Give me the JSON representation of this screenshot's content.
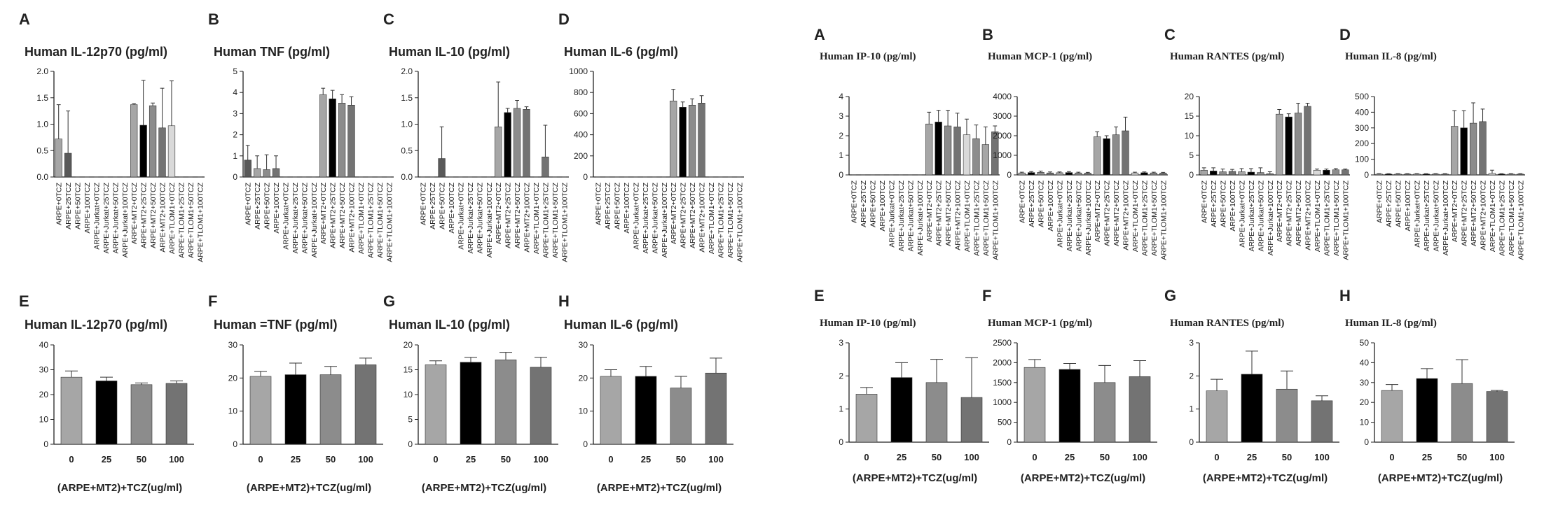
{
  "chart_data": [
    {
      "type": "bar",
      "label": "A",
      "title": "Human IL-12p70 (pg/ml)",
      "categories": [
        "ARPE+0TCZ",
        "ARPE+25TCZ",
        "ARPE+50TCZ",
        "ARPE+100TCZ",
        "ARPE+Jurkat+0TCZ",
        "ARPE+Jurkat+25TCZ",
        "ARPE+Jurkat+50TCZ",
        "ARPE+Jurkat+100TCZ",
        "ARPE+MT2+0TCZ",
        "ARPE+MT2+25TCZ",
        "ARPE+MT2+50TCZ",
        "ARPE+MT2+100TCZ",
        "ARPE+TLOM1+0TCZ",
        "ARPE+TLOM1+25TCZ",
        "ARPE+TLOM1+50TCZ",
        "ARPE+TLOM1+100TCZ"
      ],
      "values": [
        0.72,
        0.45,
        0,
        0,
        0,
        0,
        0,
        0,
        1.37,
        0.98,
        1.35,
        0.93,
        0.97,
        0,
        0,
        0
      ],
      "errors": [
        0.65,
        0.8,
        0,
        0,
        0,
        0,
        0,
        0,
        0.02,
        0.85,
        0.05,
        0.75,
        0.85,
        0,
        0,
        0
      ],
      "colors": [
        "#a6a6a6",
        "#595959",
        "#8c8c8c",
        "#737373",
        "#a6a6a6",
        "#000000",
        "#8c8c8c",
        "#737373",
        "#a6a6a6",
        "#000000",
        "#8c8c8c",
        "#737373",
        "#d9d9d9",
        "#000000",
        "#8c8c8c",
        "#737373"
      ],
      "ylim": [
        0,
        2
      ],
      "yticks": [
        {
          "value": 0,
          "label": "0.0"
        },
        0.5,
        {
          "value": 1,
          "label": "1.0"
        },
        1.5,
        {
          "value": 2,
          "label": "2.0"
        }
      ]
    },
    {
      "type": "bar",
      "label": "B",
      "title": "Human TNF (pg/ml)",
      "categories": [
        "ARPE+0TCZ",
        "ARPE+25TCZ",
        "ARPE+50TCZ",
        "ARPE+100TCZ",
        "ARPE+Jurkat+0TCZ",
        "ARPE+Jurkat+25TCZ",
        "ARPE+Jurkat+50TCZ",
        "ARPE+Jurkat+100TCZ",
        "ARPE+MT2+0TCZ",
        "ARPE+MT2+25TCZ",
        "ARPE+MT2+50TCZ",
        "ARPE+MT2+100TCZ",
        "ARPE+TLOM1+0TCZ",
        "ARPE+TLOM1+25TCZ",
        "ARPE+TLOM1+50TCZ",
        "ARPE+TLOM1+100TCZ"
      ],
      "values": [
        0.8,
        0.4,
        0.35,
        0.4,
        0,
        0,
        0,
        0,
        3.9,
        3.7,
        3.5,
        3.4,
        0,
        0,
        0,
        0
      ],
      "errors": [
        0.7,
        0.6,
        0.7,
        0.6,
        0,
        0,
        0,
        0,
        0.3,
        0.4,
        0.4,
        0.4,
        0,
        0,
        0,
        0
      ],
      "colors": [
        "#595959",
        "#a6a6a6",
        "#8c8c8c",
        "#737373",
        "#a6a6a6",
        "#000000",
        "#8c8c8c",
        "#737373",
        "#a6a6a6",
        "#000000",
        "#8c8c8c",
        "#737373",
        "#d9d9d9",
        "#000000",
        "#8c8c8c",
        "#737373"
      ],
      "ylim": [
        0,
        5
      ],
      "yticks": [
        0,
        1,
        2,
        3,
        4,
        5
      ]
    },
    {
      "type": "bar",
      "label": "C",
      "title": "Human IL-10 (pg/ml)",
      "categories": [
        "ARPE+0TCZ",
        "ARPE+25TCZ",
        "ARPE+50TCZ",
        "ARPE+100TCZ",
        "ARPE+Jurkat+0TCZ",
        "ARPE+Jurkat+25TCZ",
        "ARPE+Jurkat+50TCZ",
        "ARPE+Jurkat+100TCZ",
        "ARPE+MT2+0TCZ",
        "ARPE+MT2+25TCZ",
        "ARPE+MT2+50TCZ",
        "ARPE+MT2+100TCZ",
        "ARPE+TLOM1+0TCZ",
        "ARPE+TLOM1+25TCZ",
        "ARPE+TLOM1+50TCZ",
        "ARPE+TLOM1+100TCZ"
      ],
      "values": [
        0,
        0,
        0.35,
        0,
        0,
        0,
        0,
        0,
        0.95,
        1.22,
        1.3,
        1.28,
        0,
        0.38,
        0,
        0
      ],
      "errors": [
        0,
        0,
        0.6,
        0,
        0,
        0,
        0,
        0,
        0.85,
        0.08,
        0.15,
        0.05,
        0,
        0.6,
        0,
        0
      ],
      "colors": [
        "#a6a6a6",
        "#000000",
        "#595959",
        "#737373",
        "#a6a6a6",
        "#000000",
        "#8c8c8c",
        "#737373",
        "#a6a6a6",
        "#000000",
        "#8c8c8c",
        "#737373",
        "#d9d9d9",
        "#737373",
        "#8c8c8c",
        "#737373"
      ],
      "ylim": [
        0,
        2
      ],
      "yticks": [
        {
          "value": 0,
          "label": "0.0"
        },
        0.5,
        {
          "value": 1,
          "label": "1.0"
        },
        1.5,
        {
          "value": 2,
          "label": "2.0"
        }
      ]
    },
    {
      "type": "bar",
      "label": "D",
      "title": "Human IL-6 (pg/ml)",
      "categories": [
        "ARPE+0TCZ",
        "ARPE+25TCZ",
        "ARPE+50TCZ",
        "ARPE+100TCZ",
        "ARPE+Jurkat+0TCZ",
        "ARPE+Jurkat+25TCZ",
        "ARPE+Jurkat+50TCZ",
        "ARPE+Jurkat+100TCZ",
        "ARPE+MT2+0TCZ",
        "ARPE+MT2+25TCZ",
        "ARPE+MT2+50TCZ",
        "ARPE+MT2+100TCZ",
        "ARPE+TLOM1+0TCZ",
        "ARPE+TLOM1+25TCZ",
        "ARPE+TLOM1+50TCZ",
        "ARPE+TLOM1+100TCZ"
      ],
      "values": [
        0,
        0,
        0,
        0,
        0,
        0,
        0,
        0,
        720,
        660,
        680,
        700,
        0,
        0,
        0,
        0
      ],
      "errors": [
        0,
        0,
        0,
        0,
        0,
        0,
        0,
        0,
        110,
        50,
        60,
        70,
        0,
        0,
        0,
        0
      ],
      "colors": [
        "#a6a6a6",
        "#000000",
        "#8c8c8c",
        "#737373",
        "#a6a6a6",
        "#000000",
        "#8c8c8c",
        "#737373",
        "#a6a6a6",
        "#000000",
        "#8c8c8c",
        "#737373",
        "#d9d9d9",
        "#000000",
        "#8c8c8c",
        "#737373"
      ],
      "ylim": [
        0,
        1000
      ],
      "yticks": [
        0,
        200,
        400,
        600,
        800,
        1000
      ]
    },
    {
      "type": "bar",
      "label": "A",
      "title": "Human IP-10 (pg/ml)",
      "categories": [
        "ARPE+0TCZ",
        "ARPE+25TCZ",
        "ARPE+50TCZ",
        "ARPE+100TCZ",
        "ARPE+Jurkat+0TCZ",
        "ARPE+Jurkat+25TCZ",
        "ARPE+Jurkat+50TCZ",
        "ARPE+Jurkat+100TCZ",
        "ARPE+MT2+0TCZ",
        "ARPE+MT2+25TCZ",
        "ARPE+MT2+50TCZ",
        "ARPE+MT2+100TCZ",
        "ARPE+TLOM1+0TCZ",
        "ARPE+TLOM1+25TCZ",
        "ARPE+TLOM1+50TCZ",
        "ARPE+TLOM1+100TCZ"
      ],
      "values": [
        0,
        0,
        0,
        0,
        0,
        0,
        0,
        0,
        2.6,
        2.7,
        2.5,
        2.45,
        2.05,
        1.85,
        1.55,
        2.2
      ],
      "errors": [
        0,
        0,
        0,
        0,
        0,
        0,
        0,
        0,
        0.6,
        0.6,
        0.8,
        0.7,
        0.8,
        0.7,
        0.9,
        0.3
      ],
      "colors": [
        "#a6a6a6",
        "#000000",
        "#8c8c8c",
        "#737373",
        "#a6a6a6",
        "#000000",
        "#8c8c8c",
        "#737373",
        "#a6a6a6",
        "#000000",
        "#8c8c8c",
        "#737373",
        "#d9d9d9",
        "#8c8c8c",
        "#a6a6a6",
        "#737373"
      ],
      "ylim": [
        0,
        4
      ],
      "yticks": [
        0,
        1,
        2,
        3,
        4
      ]
    },
    {
      "type": "bar",
      "label": "B",
      "title": "Human MCP-1 (pg/ml)",
      "categories": [
        "ARPE+0TCZ",
        "ARPE+25TCZ",
        "ARPE+50TCZ",
        "ARPE+100TCZ",
        "ARPE+Jurkat+0TCZ",
        "ARPE+Jurkat+25TCZ",
        "ARPE+Jurkat+50TCZ",
        "ARPE+Jurkat+100TCZ",
        "ARPE+MT2+0TCZ",
        "ARPE+MT2+25TCZ",
        "ARPE+MT2+50TCZ",
        "ARPE+MT2+100TCZ",
        "ARPE+TLOM1+0TCZ",
        "ARPE+TLOM1+25TCZ",
        "ARPE+TLOM1+50TCZ",
        "ARPE+TLOM1+100TCZ"
      ],
      "values": [
        100,
        120,
        130,
        100,
        110,
        120,
        100,
        90,
        1950,
        1850,
        2050,
        2250,
        100,
        110,
        100,
        90
      ],
      "errors": [
        40,
        50,
        60,
        50,
        40,
        50,
        40,
        40,
        250,
        150,
        400,
        700,
        40,
        40,
        40,
        40
      ],
      "colors": [
        "#a6a6a6",
        "#000000",
        "#8c8c8c",
        "#737373",
        "#a6a6a6",
        "#000000",
        "#8c8c8c",
        "#737373",
        "#a6a6a6",
        "#000000",
        "#8c8c8c",
        "#737373",
        "#d9d9d9",
        "#000000",
        "#8c8c8c",
        "#737373"
      ],
      "ylim": [
        0,
        4000
      ],
      "yticks": [
        0,
        1000,
        2000,
        3000,
        4000
      ]
    },
    {
      "type": "bar",
      "label": "C",
      "title": "Human RANTES (pg/ml)",
      "categories": [
        "ARPE+0TCZ",
        "ARPE+25TCZ",
        "ARPE+50TCZ",
        "ARPE+100TCZ",
        "ARPE+Jurkat+0TCZ",
        "ARPE+Jurkat+25TCZ",
        "ARPE+Jurkat+50TCZ",
        "ARPE+Jurkat+100TCZ",
        "ARPE+MT2+0TCZ",
        "ARPE+MT2+25TCZ",
        "ARPE+MT2+50TCZ",
        "ARPE+MT2+100TCZ",
        "ARPE+TLOM1+0TCZ",
        "ARPE+TLOM1+25TCZ",
        "ARPE+TLOM1+50TCZ",
        "ARPE+TLOM1+100TCZ"
      ],
      "values": [
        1.2,
        1,
        0.8,
        0.9,
        0.8,
        0.7,
        0.6,
        0.3,
        15.5,
        14.8,
        15.8,
        17.5,
        1.2,
        1.2,
        1.3,
        1.3
      ],
      "errors": [
        0.6,
        0.8,
        0.7,
        0.5,
        0.8,
        0.9,
        1.2,
        0.5,
        1.2,
        0.8,
        2.5,
        0.8,
        0.3,
        0.3,
        0.3,
        0.2
      ],
      "colors": [
        "#a6a6a6",
        "#000000",
        "#8c8c8c",
        "#737373",
        "#a6a6a6",
        "#000000",
        "#8c8c8c",
        "#737373",
        "#a6a6a6",
        "#000000",
        "#8c8c8c",
        "#737373",
        "#d9d9d9",
        "#000000",
        "#8c8c8c",
        "#737373"
      ],
      "ylim": [
        0,
        20
      ],
      "yticks": [
        0,
        5,
        10,
        15,
        20
      ]
    },
    {
      "type": "bar",
      "label": "D",
      "title": "Human IL-8 (pg/ml)",
      "categories": [
        "ARPE+0TCZ",
        "ARPE+25TCZ",
        "ARPE+50TCZ",
        "ARPE+100TCZ",
        "ARPE+Jurkat+0TCZ",
        "ARPE+Jurkat+25TCZ",
        "ARPE+Jurkat+50TCZ",
        "ARPE+Jurkat+100TCZ",
        "ARPE+MT2+0TCZ",
        "ARPE+MT2+25TCZ",
        "ARPE+MT2+50TCZ",
        "ARPE+MT2+100TCZ",
        "ARPE+TLOM1+0TCZ",
        "ARPE+TLOM1+25TCZ",
        "ARPE+TLOM1+50TCZ",
        "ARPE+TLOM1+100TCZ"
      ],
      "values": [
        5,
        5,
        5,
        5,
        5,
        5,
        5,
        5,
        310,
        300,
        330,
        340,
        10,
        5,
        5,
        5
      ],
      "errors": [
        3,
        3,
        3,
        3,
        3,
        3,
        3,
        3,
        100,
        110,
        130,
        80,
        20,
        3,
        3,
        3
      ],
      "colors": [
        "#a6a6a6",
        "#000000",
        "#8c8c8c",
        "#737373",
        "#a6a6a6",
        "#000000",
        "#8c8c8c",
        "#737373",
        "#a6a6a6",
        "#000000",
        "#8c8c8c",
        "#737373",
        "#d9d9d9",
        "#000000",
        "#8c8c8c",
        "#737373"
      ],
      "ylim": [
        0,
        500
      ],
      "yticks": [
        0,
        100,
        200,
        300,
        400,
        500
      ]
    },
    {
      "type": "bar",
      "label": "E",
      "title": "Human IL-12p70 (pg/ml)",
      "categories": [
        "0",
        "25",
        "50",
        "100"
      ],
      "values": [
        27,
        25.5,
        24,
        24.5
      ],
      "errors": [
        2.5,
        1.5,
        0.7,
        1
      ],
      "colors": [
        "#a6a6a6",
        "#000000",
        "#8c8c8c",
        "#737373"
      ],
      "ylim": [
        0,
        40
      ],
      "yticks": [
        0,
        10,
        20,
        30,
        40
      ],
      "xlabel": "(ARPE+MT2)+TCZ(ug/ml)"
    },
    {
      "type": "bar",
      "label": "F",
      "title": "Human =TNF (pg/ml)",
      "categories": [
        "0",
        "25",
        "50",
        "100"
      ],
      "values": [
        20.5,
        21,
        21,
        24
      ],
      "errors": [
        1.5,
        3.5,
        2.5,
        2
      ],
      "colors": [
        "#a6a6a6",
        "#000000",
        "#8c8c8c",
        "#737373"
      ],
      "ylim": [
        0,
        30
      ],
      "yticks": [
        0,
        10,
        20,
        30
      ],
      "xlabel": "(ARPE+MT2)+TCZ(ug/ml)"
    },
    {
      "type": "bar",
      "label": "G",
      "title": "Human IL-10 (pg/ml)",
      "categories": [
        "0",
        "25",
        "50",
        "100"
      ],
      "values": [
        16,
        16.5,
        17,
        15.5
      ],
      "errors": [
        0.8,
        1,
        1.5,
        2
      ],
      "colors": [
        "#a6a6a6",
        "#000000",
        "#8c8c8c",
        "#737373"
      ],
      "ylim": [
        0,
        20
      ],
      "yticks": [
        0,
        5,
        10,
        15,
        20
      ],
      "xlabel": "(ARPE+MT2)+TCZ(ug/ml)"
    },
    {
      "type": "bar",
      "label": "H",
      "title": "Human IL-6 (pg/ml)",
      "categories": [
        "0",
        "25",
        "50",
        "100"
      ],
      "values": [
        20.5,
        20.5,
        17,
        21.5
      ],
      "errors": [
        2,
        3,
        3.5,
        4.5
      ],
      "colors": [
        "#a6a6a6",
        "#000000",
        "#8c8c8c",
        "#737373"
      ],
      "ylim": [
        0,
        30
      ],
      "yticks": [
        0,
        10,
        20,
        30
      ],
      "xlabel": "(ARPE+MT2)+TCZ(ug/ml)"
    },
    {
      "type": "bar",
      "label": "E",
      "title": "Human IP-10 (pg/ml)",
      "categories": [
        "0",
        "25",
        "50",
        "100"
      ],
      "values": [
        1.45,
        1.95,
        1.8,
        1.35
      ],
      "errors": [
        0.2,
        0.45,
        0.7,
        1.2
      ],
      "colors": [
        "#a6a6a6",
        "#000000",
        "#8c8c8c",
        "#737373"
      ],
      "ylim": [
        0,
        3
      ],
      "yticks": [
        0,
        1,
        2,
        3
      ],
      "xlabel": "(ARPE+MT2)+TCZ(ug/ml)"
    },
    {
      "type": "bar",
      "label": "F",
      "title": "Human MCP-1 (pg/ml)",
      "categories": [
        "0",
        "25",
        "50",
        "100"
      ],
      "values": [
        1880,
        1830,
        1500,
        1650
      ],
      "errors": [
        200,
        150,
        430,
        400
      ],
      "colors": [
        "#a6a6a6",
        "#000000",
        "#8c8c8c",
        "#737373"
      ],
      "ylim": [
        0,
        2500
      ],
      "yticks": [
        0,
        500,
        1000,
        1500,
        2000,
        2500
      ],
      "xlabel": "(ARPE+MT2)+TCZ(ug/ml)"
    },
    {
      "type": "bar",
      "label": "G",
      "title": "Human RANTES (pg/ml)",
      "categories": [
        "0",
        "25",
        "50",
        "100"
      ],
      "values": [
        1.55,
        2.05,
        1.6,
        1.25
      ],
      "errors": [
        0.35,
        0.7,
        0.55,
        0.15
      ],
      "colors": [
        "#a6a6a6",
        "#000000",
        "#8c8c8c",
        "#737373"
      ],
      "ylim": [
        0,
        3
      ],
      "yticks": [
        0,
        1,
        2,
        3
      ],
      "xlabel": "(ARPE+MT2)+TCZ(ug/ml)"
    },
    {
      "type": "bar",
      "label": "H",
      "title": "Human IL-8 (pg/ml)",
      "categories": [
        "0",
        "25",
        "50",
        "100"
      ],
      "values": [
        26,
        32,
        29.5,
        25.5
      ],
      "errors": [
        3,
        5,
        12,
        0.5
      ],
      "colors": [
        "#a6a6a6",
        "#000000",
        "#8c8c8c",
        "#737373"
      ],
      "ylim": [
        0,
        50
      ],
      "yticks": [
        0,
        10,
        20,
        30,
        40,
        50
      ],
      "xlabel": "(ARPE+MT2)+TCZ(ug/ml)"
    }
  ]
}
